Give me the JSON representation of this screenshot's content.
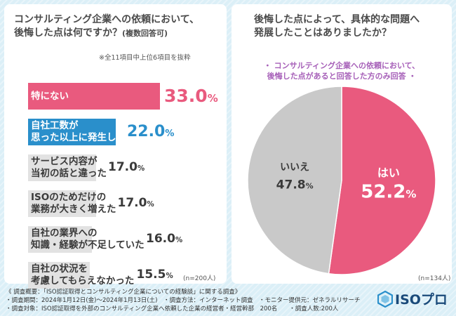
{
  "left": {
    "title_line1": "コンサルティング企業への依頼において、",
    "title_line2": "後悔した点は何ですか？",
    "title_suffix": "(複数回答可)",
    "note": "※全11項目中上位6項目を抜粋",
    "n_label": "(n=200人)"
  },
  "right": {
    "title_line1": "後悔した点によって、具体的な問題へ",
    "title_line2": "発展したことはありましたか？",
    "sub_line1": "・ コンサルティング企業への依頼において、",
    "sub_line2": "後悔した点があると回答した方のみ回答 ・",
    "n_label": "(n=134人)"
  },
  "chart_data": [
    {
      "type": "bar",
      "orientation": "horizontal",
      "title": "コンサルティング企業への依頼において、後悔した点は何ですか？(複数回答可)",
      "unit": "%",
      "categories": [
        [
          "特にない"
        ],
        [
          "自社工数が",
          "思った以上に発生した"
        ],
        [
          "サービス内容が",
          "当初の話と違った"
        ],
        [
          "ISOのためだけの",
          "業務が大きく増えた"
        ],
        [
          "自社の業界への",
          "知識・経験が不足していた"
        ],
        [
          "自社の状況を",
          "考慮してもらえなかった"
        ]
      ],
      "values": [
        33.0,
        22.0,
        17.0,
        17.0,
        16.0,
        15.5
      ],
      "value_labels": [
        "33.0",
        "22.0",
        "17.0",
        "17.0",
        "16.0",
        "15.5"
      ],
      "colors": [
        "#e95a7e",
        "#2a8fcb",
        "#e2e2e2",
        "#e2e2e2",
        "#e2e2e2",
        "#e2e2e2"
      ],
      "xlim": [
        0,
        33.0
      ]
    },
    {
      "type": "pie",
      "title": "後悔した点によって、具体的な問題へ発展したことはありましたか？",
      "labels": [
        "はい",
        "いいえ"
      ],
      "values": [
        52.2,
        47.8
      ],
      "value_labels": [
        "52.2",
        "47.8"
      ],
      "colors": [
        "#e95a7e",
        "#c9c9c9"
      ]
    }
  ],
  "footer": {
    "line1": "《 調査概要：「ISO認証取得とコンサルティング企業についての経験談」に関する調査》",
    "line2": "・調査期間：2024年1月12日(金)～2024年1月13日(土)　・調査方法：インターネット調査　・モニター提供元：ゼネラルリサーチ",
    "line3": "・調査対象：ISO認証取得を外部のコンサルティング企業へ依頼した企業の経営者・経営幹部　200名　　・調査人数:200人"
  },
  "logo": {
    "text": "ISOプロ",
    "icon": "hexagon-logo-icon"
  },
  "colors": {
    "accent_pink": "#e95a7e",
    "accent_blue": "#2a8fcb",
    "bar_gray": "#e2e2e2",
    "pie_gray": "#c9c9c9",
    "text_pink": "#e95a7e",
    "text_blue": "#2a8fcb"
  }
}
